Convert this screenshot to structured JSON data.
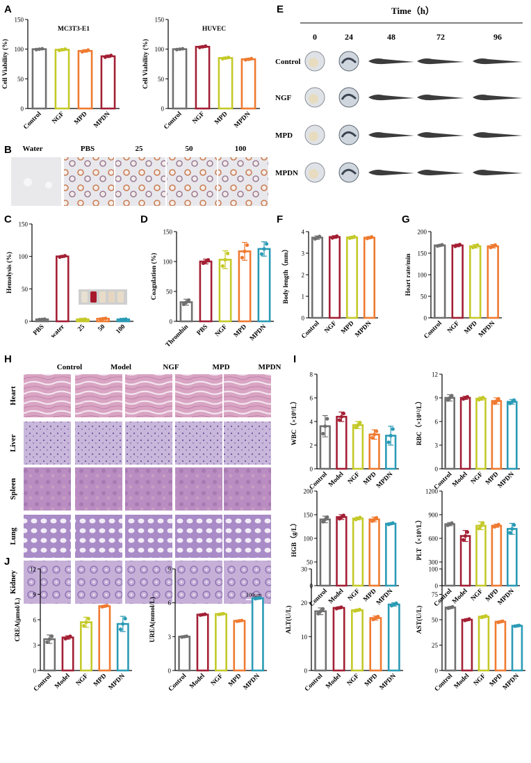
{
  "colors": {
    "gray": "#707070",
    "red": "#a31f34",
    "yellow": "#c4c928",
    "orange": "#ef7a30",
    "teal": "#2a9bb5"
  },
  "panel_letters": {
    "A": "A",
    "B": "B",
    "C": "C",
    "D": "D",
    "E": "E",
    "F": "F",
    "G": "G",
    "H": "H",
    "I": "I",
    "J": "J"
  },
  "panel_B": {
    "labels": [
      "Water",
      "PBS",
      "25",
      "50",
      "100"
    ]
  },
  "panel_E": {
    "title": "Time（h）",
    "times": [
      "0",
      "24",
      "48",
      "72",
      "96"
    ],
    "rows": [
      "Control",
      "NGF",
      "MPD",
      "MPDN"
    ]
  },
  "panel_H": {
    "columns": [
      "Control",
      "Model",
      "NGF",
      "MPD",
      "MPDN"
    ],
    "rows": [
      "Heart",
      "Liver",
      "Spleen",
      "Lung",
      "Kidney"
    ],
    "scale_bar": "100μm"
  },
  "chart_data": [
    {
      "id": "A1",
      "type": "bar",
      "title": "MC3T3-E1",
      "ylabel": "Cell Viability (%)",
      "ylim": [
        0,
        150
      ],
      "yticks": [
        0,
        50,
        100,
        150
      ],
      "categories": [
        "Control",
        "NGF",
        "MPD",
        "MPDN"
      ],
      "values": [
        100,
        99,
        97,
        88
      ],
      "errors": [
        1,
        1.5,
        2,
        2
      ],
      "colors": [
        "gray",
        "yellow",
        "orange",
        "red"
      ]
    },
    {
      "id": "A2",
      "type": "bar",
      "title": "HUVEC",
      "ylabel": "Cell Viability (%)",
      "ylim": [
        0,
        150
      ],
      "yticks": [
        0,
        50,
        100,
        150
      ],
      "categories": [
        "Control",
        "NGF",
        "MPD",
        "MPDN"
      ],
      "values": [
        100,
        104,
        85,
        83
      ],
      "errors": [
        1,
        1.5,
        1.5,
        1.5
      ],
      "colors": [
        "gray",
        "red",
        "yellow",
        "orange"
      ]
    },
    {
      "id": "C",
      "type": "bar",
      "ylabel": "Hemolysis (%)",
      "ylim": [
        0,
        150
      ],
      "yticks": [
        0,
        50,
        100,
        150
      ],
      "categories": [
        "PBS",
        "water",
        "25",
        "50",
        "100"
      ],
      "values": [
        3,
        100,
        3,
        4,
        3
      ],
      "errors": [
        0.5,
        1.5,
        0.5,
        0.8,
        0.5
      ],
      "colors": [
        "gray",
        "red",
        "yellow",
        "orange",
        "teal"
      ]
    },
    {
      "id": "D",
      "type": "bar",
      "ylabel": "Coagulation (%)",
      "ylim": [
        0,
        150
      ],
      "yticks": [
        0,
        50,
        100,
        150
      ],
      "categories": [
        "Thrombin",
        "PBS",
        "NGF",
        "MPD",
        "MPDN"
      ],
      "values": [
        32,
        100,
        103,
        117,
        121
      ],
      "errors": [
        5,
        4,
        15,
        15,
        12
      ],
      "colors": [
        "gray",
        "red",
        "yellow",
        "orange",
        "teal"
      ]
    },
    {
      "id": "F",
      "type": "bar",
      "ylabel": "Body length（mm）",
      "ylim": [
        0,
        4
      ],
      "yticks": [
        0,
        1,
        2,
        3,
        4
      ],
      "categories": [
        "Control",
        "NGF",
        "MPD",
        "MPDN"
      ],
      "values": [
        3.72,
        3.75,
        3.73,
        3.72
      ],
      "errors": [
        0.08,
        0.06,
        0.05,
        0.05
      ],
      "colors": [
        "gray",
        "red",
        "yellow",
        "orange"
      ]
    },
    {
      "id": "G",
      "type": "bar",
      "ylabel": "Heart rate/min",
      "ylim": [
        0,
        200
      ],
      "yticks": [
        0,
        50,
        100,
        150,
        200
      ],
      "categories": [
        "Control",
        "NGF",
        "MPD",
        "MPDN"
      ],
      "values": [
        168,
        168,
        166,
        166
      ],
      "errors": [
        2,
        3,
        4,
        4
      ],
      "colors": [
        "gray",
        "red",
        "yellow",
        "orange"
      ]
    },
    {
      "id": "I1",
      "type": "bar",
      "ylabel": "WBC（×10⁹/L）",
      "ylim": [
        0,
        8
      ],
      "yticks": [
        0,
        2,
        4,
        6,
        8
      ],
      "categories": [
        "Control",
        "Model",
        "NGF",
        "MPD",
        "MPDN"
      ],
      "values": [
        3.6,
        4.4,
        3.7,
        2.9,
        2.8
      ],
      "errors": [
        0.9,
        0.4,
        0.3,
        0.4,
        0.8
      ],
      "colors": [
        "gray",
        "red",
        "yellow",
        "orange",
        "teal"
      ]
    },
    {
      "id": "I2",
      "type": "bar",
      "ylabel": "RBC（×10¹²/L）",
      "ylim": [
        0,
        12
      ],
      "yticks": [
        0,
        3,
        6,
        9,
        12
      ],
      "categories": [
        "Control",
        "Model",
        "NGF",
        "MPD",
        "MPDN"
      ],
      "values": [
        9.0,
        9.0,
        8.9,
        8.6,
        8.5
      ],
      "errors": [
        0.4,
        0.2,
        0.2,
        0.4,
        0.3
      ],
      "colors": [
        "gray",
        "red",
        "yellow",
        "orange",
        "teal"
      ]
    },
    {
      "id": "I3",
      "type": "bar",
      "ylabel": "HGB（g/L）",
      "ylim": [
        0,
        200
      ],
      "yticks": [
        0,
        50,
        100,
        150,
        200
      ],
      "categories": [
        "Control",
        "Model",
        "NGF",
        "MPD",
        "MPDN"
      ],
      "values": [
        140,
        145,
        142,
        140,
        131
      ],
      "errors": [
        7,
        5,
        3,
        5,
        2
      ],
      "colors": [
        "gray",
        "red",
        "yellow",
        "orange",
        "teal"
      ]
    },
    {
      "id": "I4",
      "type": "bar",
      "ylabel": "PLT（×10⁹/L）",
      "ylim": [
        0,
        1200
      ],
      "yticks": [
        0,
        300,
        600,
        900,
        1200
      ],
      "categories": [
        "Control",
        "Model",
        "NGF",
        "MPD",
        "MPDN"
      ],
      "values": [
        780,
        630,
        760,
        760,
        720
      ],
      "errors": [
        20,
        70,
        50,
        20,
        70
      ],
      "colors": [
        "gray",
        "red",
        "yellow",
        "orange",
        "teal"
      ]
    },
    {
      "id": "J1",
      "type": "bar",
      "ylabel": "CREA(μmol/L)",
      "ylim": [
        0,
        12
      ],
      "yticks": [
        0,
        3,
        6,
        9,
        12
      ],
      "categories": [
        "Control",
        "Model",
        "NGF",
        "MPD",
        "MPDN"
      ],
      "values": [
        3.7,
        3.9,
        5.7,
        7.6,
        5.5
      ],
      "errors": [
        0.5,
        0.2,
        0.6,
        0.1,
        0.9
      ],
      "colors": [
        "gray",
        "red",
        "yellow",
        "orange",
        "teal"
      ]
    },
    {
      "id": "J2",
      "type": "bar",
      "ylabel": "UREA(mmol/L)",
      "ylim": [
        0,
        9
      ],
      "yticks": [
        0,
        3,
        6,
        9
      ],
      "categories": [
        "Control",
        "Model",
        "NGF",
        "MPD",
        "MPDN"
      ],
      "values": [
        3.0,
        4.95,
        5.0,
        4.4,
        6.4
      ],
      "errors": [
        0.05,
        0.05,
        0.05,
        0.05,
        0.05
      ],
      "colors": [
        "gray",
        "red",
        "yellow",
        "orange",
        "teal"
      ]
    },
    {
      "id": "J3",
      "type": "bar",
      "ylabel": "ALT(U/L)",
      "ylim": [
        0,
        30
      ],
      "yticks": [
        0,
        10,
        20,
        30
      ],
      "categories": [
        "Control",
        "Model",
        "NGF",
        "MPD",
        "MPDN"
      ],
      "values": [
        17.5,
        18.5,
        17.8,
        15.5,
        19.5
      ],
      "errors": [
        1,
        0.3,
        0.3,
        0.6,
        0.5
      ],
      "colors": [
        "gray",
        "red",
        "yellow",
        "orange",
        "teal"
      ]
    },
    {
      "id": "J4",
      "type": "bar",
      "ylabel": "AST(U/L)",
      "ylim": [
        0,
        100
      ],
      "yticks": [
        0,
        25,
        50,
        75,
        100
      ],
      "categories": [
        "Control",
        "Model",
        "NGF",
        "MPD",
        "MPDN"
      ],
      "values": [
        62,
        50,
        53,
        48,
        44
      ],
      "errors": [
        1,
        1,
        1,
        0.8,
        0.5
      ],
      "colors": [
        "gray",
        "red",
        "yellow",
        "orange",
        "teal"
      ]
    }
  ]
}
